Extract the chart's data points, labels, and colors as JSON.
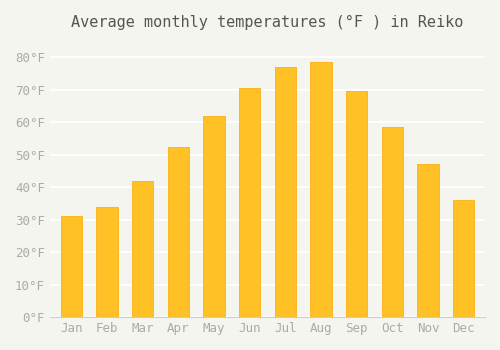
{
  "title": "Average monthly temperatures (°F ) in Reiko",
  "months": [
    "Jan",
    "Feb",
    "Mar",
    "Apr",
    "May",
    "Jun",
    "Jul",
    "Aug",
    "Sep",
    "Oct",
    "Nov",
    "Dec"
  ],
  "values": [
    31,
    34,
    42,
    52.5,
    62,
    70.5,
    77,
    78.5,
    69.5,
    58.5,
    47,
    36
  ],
  "bar_color": "#FFC125",
  "bar_edge_color": "#FFA500",
  "background_color": "#F5F5F0",
  "grid_color": "#FFFFFF",
  "ytick_labels": [
    "0°F",
    "10°F",
    "20°F",
    "30°F",
    "40°F",
    "50°F",
    "60°F",
    "70°F",
    "80°F"
  ],
  "ytick_values": [
    0,
    10,
    20,
    30,
    40,
    50,
    60,
    70,
    80
  ],
  "ylim": [
    0,
    85
  ],
  "title_fontsize": 11,
  "tick_fontsize": 9,
  "tick_color": "#AAAAAA",
  "title_color": "#555555"
}
